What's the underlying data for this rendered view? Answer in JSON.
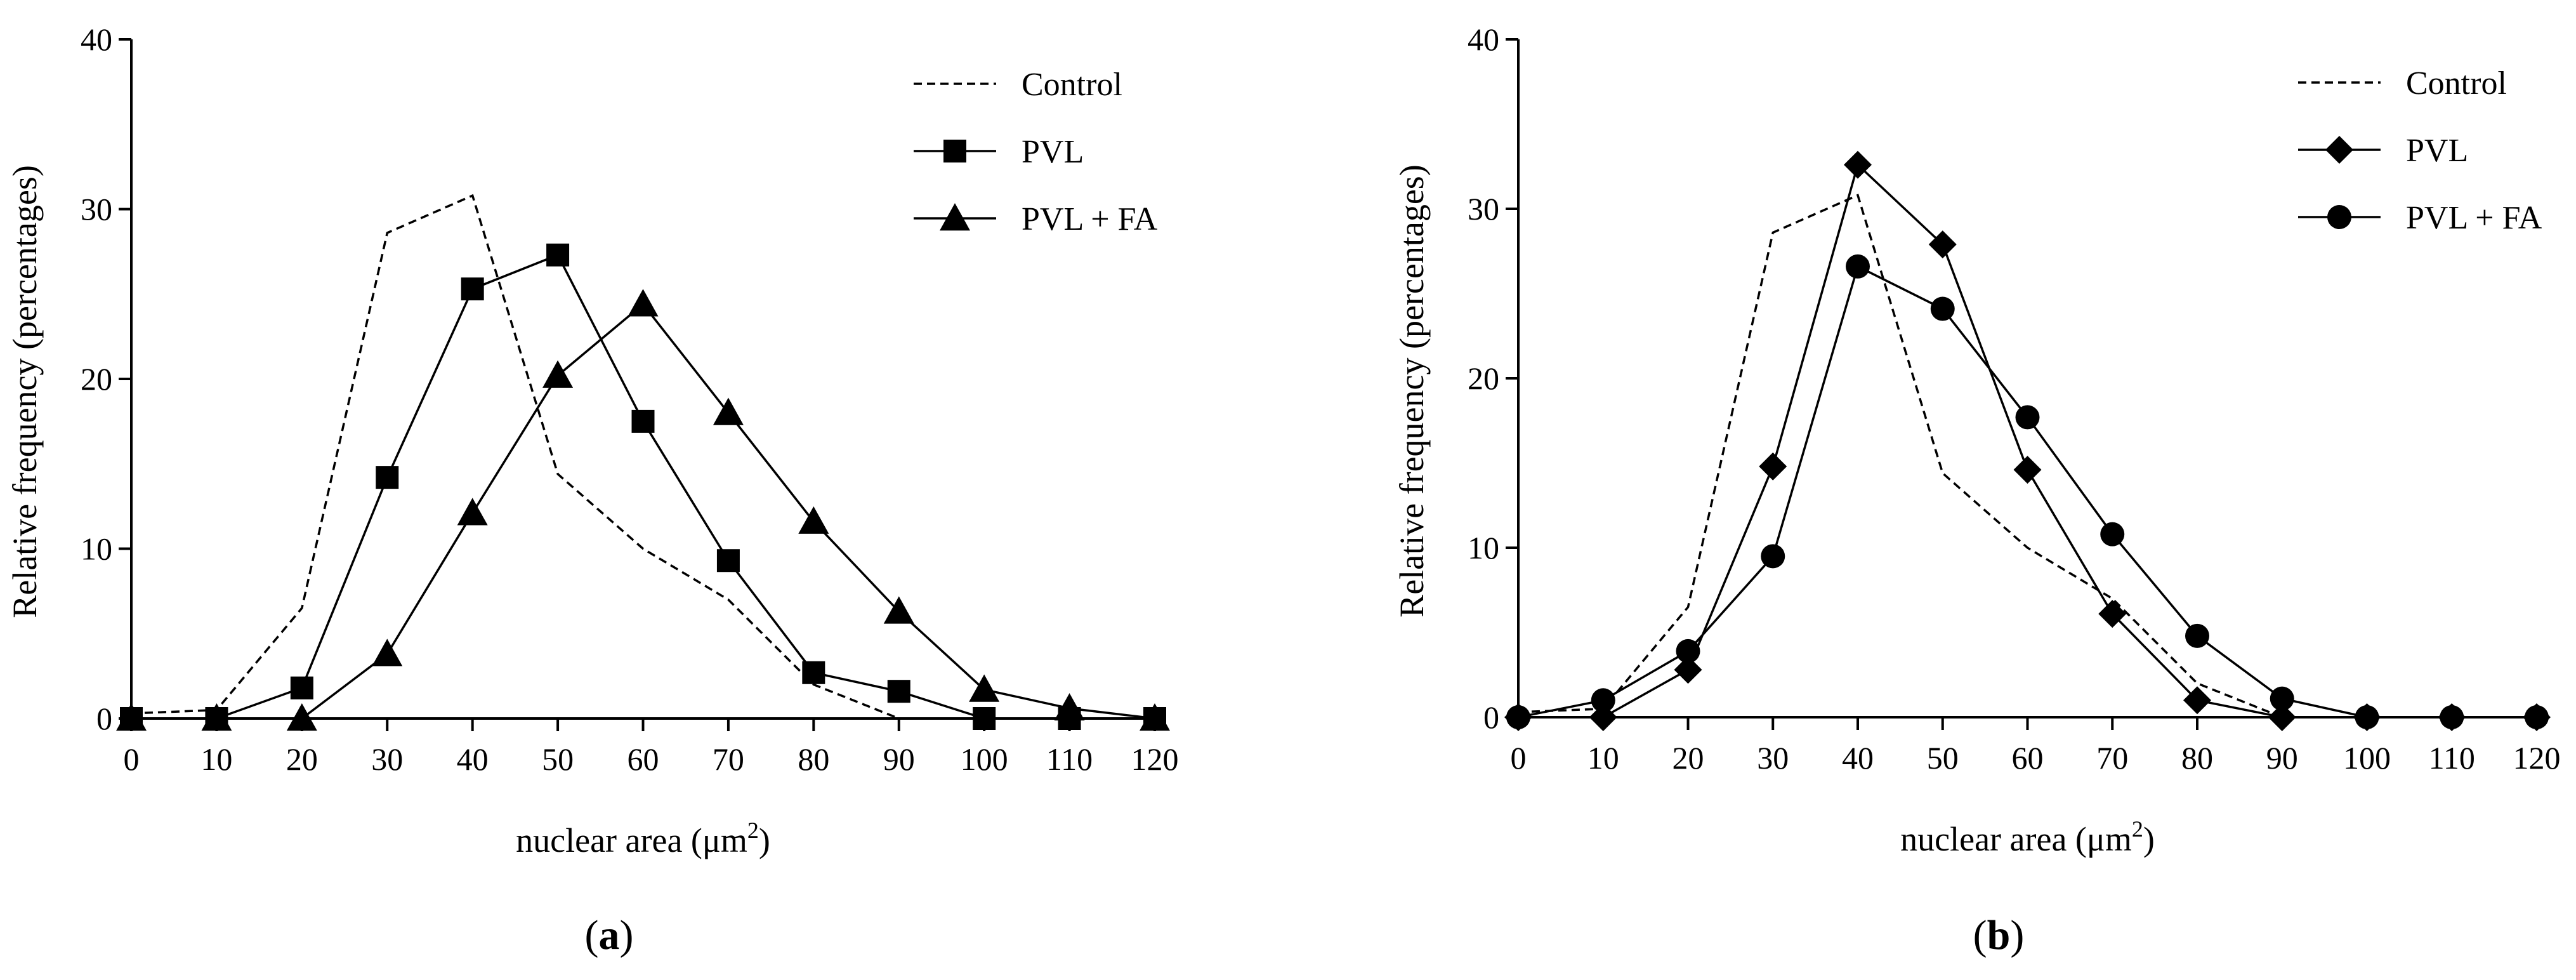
{
  "chart_data": [
    {
      "type": "line",
      "panel_label": "a",
      "xlabel": "nuclear area (μm",
      "xlabel_sup": "2",
      "xlabel_close": ")",
      "ylabel": "Relative frequency (percentages)",
      "x": [
        0,
        10,
        20,
        30,
        40,
        50,
        60,
        70,
        80,
        90,
        100,
        110,
        120
      ],
      "xlim": [
        0,
        120
      ],
      "ylim": [
        0,
        40
      ],
      "xticks": [
        0,
        10,
        20,
        30,
        40,
        50,
        60,
        70,
        80,
        90,
        100,
        110,
        120
      ],
      "yticks": [
        0,
        10,
        20,
        30,
        40
      ],
      "grid": false,
      "legend_position": "top-right",
      "series": [
        {
          "name": "Control",
          "style": "dashed",
          "marker": "none",
          "values": [
            0.3,
            0.5,
            6.5,
            28.6,
            30.8,
            14.4,
            10.0,
            7.0,
            2.0,
            0.0,
            0.0,
            0.0,
            0.0
          ]
        },
        {
          "name": "PVL",
          "style": "solid",
          "marker": "square",
          "values": [
            0.0,
            0.0,
            1.8,
            14.2,
            25.3,
            27.3,
            17.5,
            9.3,
            2.7,
            1.6,
            0.0,
            0.0,
            0.0
          ]
        },
        {
          "name": "PVL + FA",
          "style": "solid",
          "marker": "triangle",
          "values": [
            0.0,
            0.0,
            0.0,
            3.8,
            12.1,
            20.2,
            24.4,
            18.0,
            11.6,
            6.3,
            1.7,
            0.6,
            0.0
          ]
        }
      ]
    },
    {
      "type": "line",
      "panel_label": "b",
      "xlabel": "nuclear area (μm",
      "xlabel_sup": "2",
      "xlabel_close": ")",
      "ylabel": "Relative frequency (percentages)",
      "x": [
        0,
        10,
        20,
        30,
        40,
        50,
        60,
        70,
        80,
        90,
        100,
        110,
        120
      ],
      "xlim": [
        0,
        120
      ],
      "ylim": [
        0,
        40
      ],
      "xticks": [
        0,
        10,
        20,
        30,
        40,
        50,
        60,
        70,
        80,
        90,
        100,
        110,
        120
      ],
      "yticks": [
        0,
        10,
        20,
        30,
        40
      ],
      "grid": false,
      "legend_position": "top-right",
      "series": [
        {
          "name": "Control",
          "style": "dashed",
          "marker": "none",
          "values": [
            0.3,
            0.5,
            6.5,
            28.6,
            30.8,
            14.4,
            10.0,
            7.0,
            2.0,
            0.0,
            0.0,
            0.0,
            0.0
          ]
        },
        {
          "name": "PVL",
          "style": "solid",
          "marker": "diamond",
          "values": [
            0.0,
            0.0,
            2.8,
            14.8,
            32.6,
            27.9,
            14.6,
            6.1,
            1.0,
            0.0,
            0.0,
            0.0,
            0.0
          ]
        },
        {
          "name": "PVL + FA",
          "style": "solid",
          "marker": "circle",
          "values": [
            0.0,
            1.0,
            3.9,
            9.5,
            26.6,
            24.1,
            17.7,
            10.8,
            4.8,
            1.1,
            0.0,
            0.0,
            0.0
          ]
        }
      ]
    }
  ]
}
